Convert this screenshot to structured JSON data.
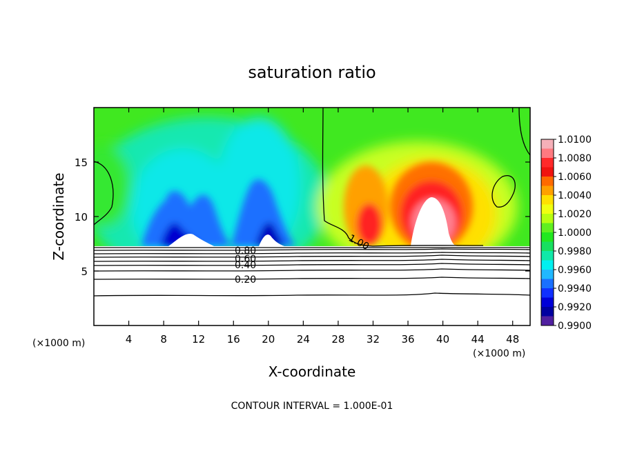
{
  "chart_data": {
    "type": "heatmap",
    "title": "saturation ratio",
    "xlabel": "X-coordinate",
    "ylabel": "Z-coordinate",
    "x_unit_left": "(×1000 m)",
    "x_unit_right": "(×1000 m)",
    "xlim": [
      0,
      50
    ],
    "ylim": [
      0,
      20
    ],
    "x_ticks": [
      4,
      8,
      12,
      16,
      20,
      24,
      28,
      32,
      36,
      40,
      44,
      48
    ],
    "y_ticks": [
      5,
      10,
      15
    ],
    "colorbar": {
      "levels": [
        "1.0100",
        "1.0080",
        "1.0060",
        "1.0040",
        "1.0020",
        "1.0000",
        "0.9980",
        "0.9960",
        "0.9940",
        "0.9920",
        "0.9900"
      ],
      "colors": [
        "#f5b0b8",
        "#ff7a80",
        "#ff2a2a",
        "#f01410",
        "#ff6a00",
        "#ffa000",
        "#ffe000",
        "#f0ff10",
        "#b8ff10",
        "#60f020",
        "#22e820",
        "#18e060",
        "#10e8a8",
        "#00f0f0",
        "#20b8ff",
        "#1a70ff",
        "#1030ff",
        "#0000d8",
        "#0000a0",
        "#5020a0"
      ]
    },
    "contour_labels": [
      "0.80",
      "0.60",
      "0.40",
      "0.20",
      "1.00"
    ],
    "footer": "CONTOUR INTERVAL = 1.000E-01"
  }
}
